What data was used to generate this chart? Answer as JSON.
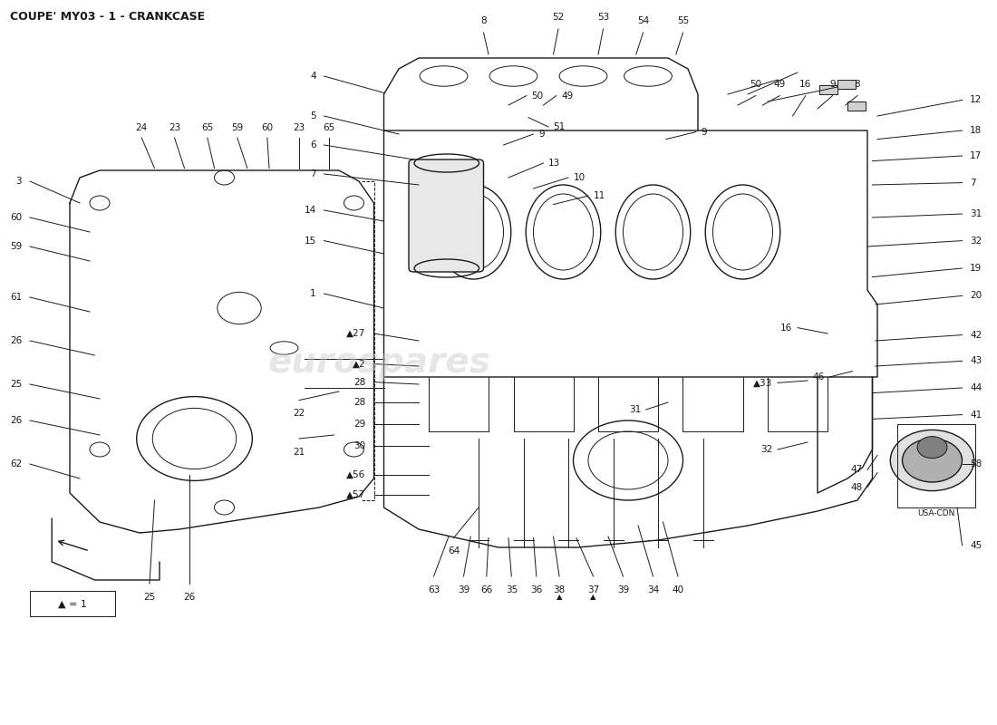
{
  "title": "COUPE' MY03 - 1 - CRANKCASE",
  "title_fontsize": 9,
  "bg_color": "#ffffff",
  "line_color": "#1a1a1a",
  "label_fontsize": 7.5,
  "legend_text": "▲ = 1",
  "usa_cdn_text": "USA-CDN"
}
